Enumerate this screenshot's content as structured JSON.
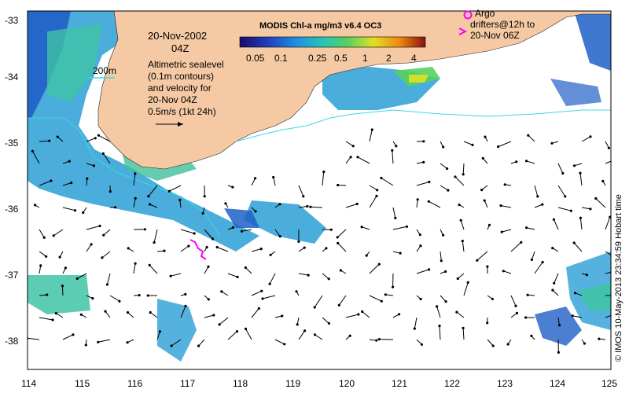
{
  "map": {
    "lat_ticks": [
      "-33",
      "-34",
      "-35",
      "-36",
      "-37",
      "-38"
    ],
    "lon_ticks": [
      "114",
      "115",
      "116",
      "117",
      "118",
      "119",
      "120",
      "121",
      "122",
      "123",
      "124",
      "125"
    ],
    "colors": {
      "land": "#f4c9a3",
      "ocean": "#ffffff",
      "contour_200m": "#3fd8e0",
      "drifter": "#ff00ff",
      "vector": "#000000"
    }
  },
  "header": {
    "date": "20-Nov-2002",
    "hour": "04Z",
    "description_lines": [
      "Altimetric sealevel",
      "(0.1m contours)",
      "and velocity for",
      "20-Nov 04Z",
      "0.5m/s (1kt 24h)"
    ],
    "contour_label": "200m"
  },
  "colorbar": {
    "title": "MODIS Chl-a mg/m3 v6.4 OC3",
    "ticks": [
      "0.05",
      "0.1",
      "0.25",
      "0.5",
      "1",
      "2",
      "4"
    ]
  },
  "argo": {
    "label_lines": [
      "Argo",
      "drifters@12h to",
      "20-Nov 06Z"
    ]
  },
  "credit": "© IMOS 10-May-2013 23:34:59 Hobart time"
}
